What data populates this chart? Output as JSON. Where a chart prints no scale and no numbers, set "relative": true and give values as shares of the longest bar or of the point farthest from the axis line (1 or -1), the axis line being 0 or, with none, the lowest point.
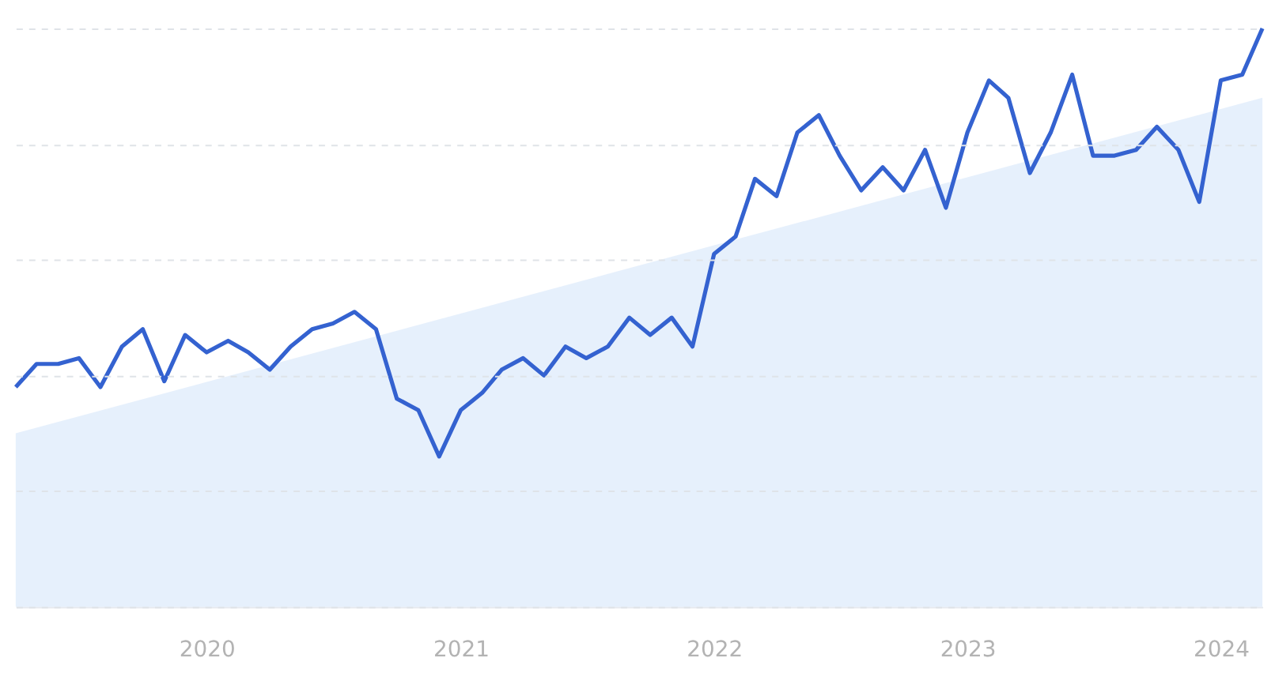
{
  "chart_data": {
    "type": "line",
    "relative": true,
    "xlim": [
      "2019-04",
      "2024-03"
    ],
    "xticks": [
      "2020",
      "2021",
      "2022",
      "2023",
      "2024"
    ],
    "series": [
      {
        "type": "area",
        "color": "#e3eefc",
        "x": [
          "2019-04",
          "2024-03"
        ],
        "values": [
          0.3,
          0.88
        ]
      },
      {
        "color": "#3462d0",
        "x": [
          "2019-04",
          "2019-05",
          "2019-06",
          "2019-07",
          "2019-08",
          "2019-09",
          "2019-10",
          "2019-11",
          "2019-12",
          "2020-01",
          "2020-02",
          "2020-03",
          "2020-04",
          "2020-05",
          "2020-06",
          "2020-07",
          "2020-08",
          "2020-09",
          "2020-10",
          "2020-11",
          "2020-12",
          "2021-01",
          "2021-02",
          "2021-03",
          "2021-04",
          "2021-05",
          "2021-06",
          "2021-07",
          "2021-08",
          "2021-09",
          "2021-10",
          "2021-11",
          "2021-12",
          "2022-01",
          "2022-02",
          "2022-03",
          "2022-04",
          "2022-05",
          "2022-06",
          "2022-07",
          "2022-08",
          "2022-09",
          "2022-10",
          "2022-11",
          "2022-12",
          "2023-01",
          "2023-02",
          "2023-03",
          "2023-04",
          "2023-05",
          "2023-06",
          "2023-07",
          "2023-08",
          "2023-09",
          "2023-10",
          "2023-11",
          "2023-12",
          "2024-01",
          "2024-02",
          "2024-03"
        ],
        "values": [
          0.38,
          0.42,
          0.42,
          0.43,
          0.38,
          0.45,
          0.48,
          0.39,
          0.47,
          0.44,
          0.46,
          0.44,
          0.41,
          0.45,
          0.48,
          0.49,
          0.51,
          0.48,
          0.36,
          0.34,
          0.26,
          0.34,
          0.37,
          0.41,
          0.43,
          0.4,
          0.45,
          0.43,
          0.45,
          0.5,
          0.47,
          0.5,
          0.45,
          0.61,
          0.64,
          0.74,
          0.71,
          0.82,
          0.85,
          0.78,
          0.72,
          0.76,
          0.72,
          0.79,
          0.69,
          0.82,
          0.91,
          0.88,
          0.75,
          0.82,
          0.92,
          0.78,
          0.78,
          0.79,
          0.83,
          0.79,
          0.7,
          0.91,
          0.92,
          1.0
        ]
      }
    ],
    "grid": "y",
    "tick_labels": "x",
    "line_style": "solid",
    "marker": "none"
  }
}
